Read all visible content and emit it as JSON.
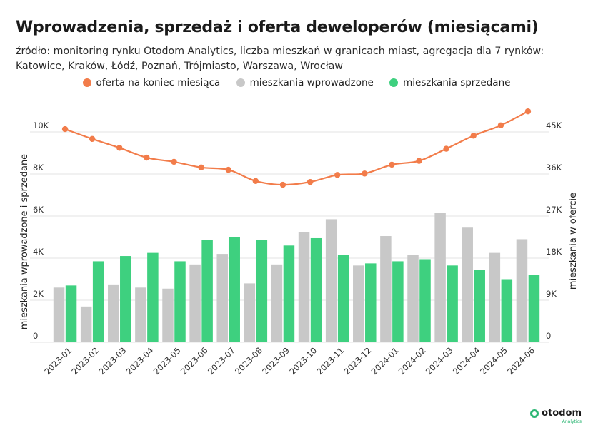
{
  "title": "Wprowadzenia, sprzedaż i oferta deweloperów (miesiącami)",
  "subtitle": "źródło: monitoring rynku Otodom Analytics, liczba mieszkań w granicach miast, agregacja dla 7 rynków: Katowice, Kraków, Łódź, Poznań, Trójmiasto, Warszawa, Wrocław",
  "legend": {
    "offer": "oferta na koniec miesiąca",
    "introduced": "mieszkania wprowadzone",
    "sold": "mieszkania sprzedane"
  },
  "colors": {
    "offer": "#f27c4a",
    "introduced": "#c8c8c8",
    "sold": "#3ed07f",
    "grid": "#e3e3e3"
  },
  "logo": {
    "name": "otodom",
    "sub": "Analytics"
  },
  "chart_data": {
    "type": "bar",
    "categories": [
      "2023-01",
      "2023-02",
      "2023-03",
      "2023-04",
      "2023-05",
      "2023-06",
      "2023-07",
      "2023-08",
      "2023-09",
      "2023-10",
      "2023-11",
      "2023-12",
      "2024-01",
      "2024-02",
      "2024-03",
      "2024-04",
      "2024-05",
      "2024-06"
    ],
    "series": [
      {
        "name": "mieszkania wprowadzone",
        "axis": "left",
        "kind": "bar",
        "values": [
          2600,
          1700,
          2750,
          2600,
          2550,
          3700,
          4200,
          2800,
          3700,
          5250,
          5850,
          3650,
          5050,
          4150,
          6150,
          5450,
          4250,
          4900
        ]
      },
      {
        "name": "mieszkania sprzedane",
        "axis": "left",
        "kind": "bar",
        "values": [
          2700,
          3850,
          4100,
          4250,
          3850,
          4850,
          5000,
          4850,
          4600,
          4950,
          4150,
          3750,
          3850,
          3950,
          3650,
          3450,
          3000,
          3200
        ]
      },
      {
        "name": "oferta na koniec miesiąca",
        "axis": "right",
        "kind": "line",
        "values": [
          45600,
          43500,
          41600,
          39500,
          38600,
          37400,
          36900,
          34500,
          33700,
          34300,
          35800,
          36100,
          38000,
          38800,
          41400,
          44200,
          46400,
          49400
        ]
      }
    ],
    "ylabel": "mieszkania wprowadzone i sprzedane",
    "y2label": "mieszkania w ofercie",
    "ylim": [
      0,
      10000
    ],
    "y2lim": [
      0,
      45000
    ],
    "yticks": [
      0,
      2000,
      4000,
      6000,
      8000,
      10000
    ],
    "ytick_labels": [
      "0",
      "2K",
      "4K",
      "6K",
      "8K",
      "10K"
    ],
    "y2ticks": [
      0,
      9000,
      18000,
      27000,
      36000,
      45000
    ],
    "y2tick_labels": [
      "0",
      "9K",
      "18K",
      "27K",
      "36K",
      "45K"
    ]
  }
}
